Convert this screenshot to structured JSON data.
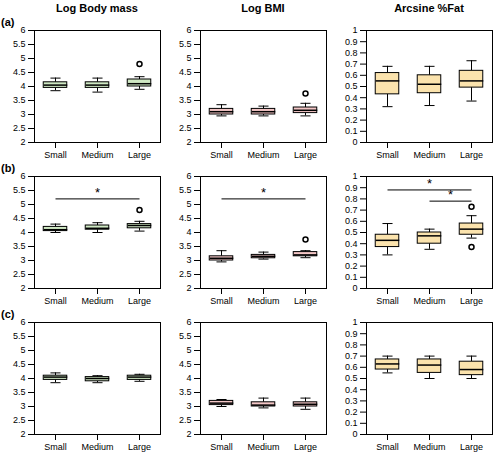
{
  "chart_data": [
    {
      "type": "box",
      "title": "Log Body mass",
      "panel_label": "(a)",
      "color": "#cfe8c3",
      "categories": [
        "Small",
        "Medium",
        "Large"
      ],
      "boxes": [
        {
          "whisker_low": 3.85,
          "q1": 3.95,
          "median": 4.05,
          "q3": 4.15,
          "whisker_high": 4.3,
          "outliers": []
        },
        {
          "whisker_low": 3.8,
          "q1": 3.95,
          "median": 4.05,
          "q3": 4.15,
          "whisker_high": 4.3,
          "outliers": []
        },
        {
          "whisker_low": 3.9,
          "q1": 4.0,
          "median": 4.1,
          "q3": 4.25,
          "whisker_high": 4.35,
          "outliers": [
            4.8
          ]
        }
      ],
      "ylim": [
        2,
        6
      ],
      "yticks": [
        2,
        2.5,
        3,
        3.5,
        4,
        4.5,
        5,
        5.5,
        6
      ],
      "significance": []
    },
    {
      "type": "box",
      "title": "Log BMI",
      "color": "#f3c6c6",
      "categories": [
        "Small",
        "Medium",
        "Large"
      ],
      "boxes": [
        {
          "whisker_low": 2.95,
          "q1": 3.0,
          "median": 3.1,
          "q3": 3.2,
          "whisker_high": 3.35,
          "outliers": []
        },
        {
          "whisker_low": 2.95,
          "q1": 3.0,
          "median": 3.1,
          "q3": 3.2,
          "whisker_high": 3.3,
          "outliers": []
        },
        {
          "whisker_low": 2.95,
          "q1": 3.05,
          "median": 3.15,
          "q3": 3.25,
          "whisker_high": 3.4,
          "outliers": [
            3.75
          ]
        }
      ],
      "ylim": [
        2,
        6
      ],
      "yticks": [
        2,
        2.5,
        3,
        3.5,
        4,
        4.5,
        5,
        5.5,
        6
      ],
      "significance": []
    },
    {
      "type": "box",
      "title": "Arcsine %Fat",
      "color": "#fbe3ad",
      "categories": [
        "Small",
        "Medium",
        "Large"
      ],
      "boxes": [
        {
          "whisker_low": 0.32,
          "q1": 0.43,
          "median": 0.55,
          "q3": 0.62,
          "whisker_high": 0.68,
          "outliers": []
        },
        {
          "whisker_low": 0.33,
          "q1": 0.44,
          "median": 0.52,
          "q3": 0.6,
          "whisker_high": 0.68,
          "outliers": []
        },
        {
          "whisker_low": 0.37,
          "q1": 0.49,
          "median": 0.55,
          "q3": 0.64,
          "whisker_high": 0.73,
          "outliers": []
        }
      ],
      "ylim": [
        0,
        1
      ],
      "yticks": [
        0,
        0.1,
        0.2,
        0.3,
        0.4,
        0.5,
        0.6,
        0.7,
        0.8,
        0.9,
        1
      ],
      "significance": []
    },
    {
      "type": "box",
      "panel_label": "(b)",
      "color": "#cfe8c3",
      "categories": [
        "Small",
        "Medium",
        "Large"
      ],
      "boxes": [
        {
          "whisker_low": 4.0,
          "q1": 4.05,
          "median": 4.1,
          "q3": 4.2,
          "whisker_high": 4.3,
          "outliers": []
        },
        {
          "whisker_low": 4.0,
          "q1": 4.1,
          "median": 4.15,
          "q3": 4.25,
          "whisker_high": 4.35,
          "outliers": []
        },
        {
          "whisker_low": 4.05,
          "q1": 4.15,
          "median": 4.25,
          "q3": 4.3,
          "whisker_high": 4.4,
          "outliers": [
            4.8
          ]
        }
      ],
      "ylim": [
        2,
        6
      ],
      "yticks": [
        2,
        2.5,
        3,
        3.5,
        4,
        4.5,
        5,
        5.5,
        6
      ],
      "significance": [
        {
          "from": "Small",
          "to": "Large",
          "y": 5.2,
          "label": "*"
        }
      ]
    },
    {
      "type": "box",
      "color": "#f3c6c6",
      "categories": [
        "Small",
        "Medium",
        "Large"
      ],
      "boxes": [
        {
          "whisker_low": 2.95,
          "q1": 3.0,
          "median": 3.08,
          "q3": 3.15,
          "whisker_high": 3.35,
          "outliers": []
        },
        {
          "whisker_low": 3.05,
          "q1": 3.08,
          "median": 3.15,
          "q3": 3.2,
          "whisker_high": 3.3,
          "outliers": []
        },
        {
          "whisker_low": 3.1,
          "q1": 3.15,
          "median": 3.2,
          "q3": 3.3,
          "whisker_high": 3.35,
          "outliers": [
            3.75
          ]
        }
      ],
      "ylim": [
        2,
        6
      ],
      "yticks": [
        2,
        2.5,
        3,
        3.5,
        4,
        4.5,
        5,
        5.5,
        6
      ],
      "significance": [
        {
          "from": "Small",
          "to": "Large",
          "y": 5.2,
          "label": "*"
        }
      ]
    },
    {
      "type": "box",
      "color": "#fbe3ad",
      "categories": [
        "Small",
        "Medium",
        "Large"
      ],
      "boxes": [
        {
          "whisker_low": 0.3,
          "q1": 0.37,
          "median": 0.43,
          "q3": 0.48,
          "whisker_high": 0.58,
          "outliers": []
        },
        {
          "whisker_low": 0.35,
          "q1": 0.4,
          "median": 0.47,
          "q3": 0.5,
          "whisker_high": 0.53,
          "outliers": []
        },
        {
          "whisker_low": 0.45,
          "q1": 0.48,
          "median": 0.53,
          "q3": 0.58,
          "whisker_high": 0.65,
          "outliers": [
            0.73,
            0.37
          ]
        }
      ],
      "ylim": [
        0,
        1
      ],
      "yticks": [
        0,
        0.1,
        0.2,
        0.3,
        0.4,
        0.5,
        0.6,
        0.7,
        0.8,
        0.9,
        1
      ],
      "significance": [
        {
          "from": "Small",
          "to": "Large",
          "y": 0.88,
          "label": "*"
        },
        {
          "from": "Medium",
          "to": "Large",
          "y": 0.78,
          "label": "*"
        }
      ]
    },
    {
      "type": "box",
      "panel_label": "(c)",
      "color": "#cfe8c3",
      "categories": [
        "Small",
        "Medium",
        "Large"
      ],
      "boxes": [
        {
          "whisker_low": 3.85,
          "q1": 3.95,
          "median": 4.05,
          "q3": 4.1,
          "whisker_high": 4.2,
          "outliers": []
        },
        {
          "whisker_low": 3.85,
          "q1": 3.9,
          "median": 4.0,
          "q3": 4.05,
          "whisker_high": 4.1,
          "outliers": []
        },
        {
          "whisker_low": 3.9,
          "q1": 3.95,
          "median": 4.05,
          "q3": 4.1,
          "whisker_high": 4.15,
          "outliers": []
        }
      ],
      "ylim": [
        2,
        6
      ],
      "yticks": [
        2,
        2.5,
        3,
        3.5,
        4,
        4.5,
        5,
        5.5,
        6
      ],
      "significance": []
    },
    {
      "type": "box",
      "color": "#f3c6c6",
      "categories": [
        "Small",
        "Medium",
        "Large"
      ],
      "boxes": [
        {
          "whisker_low": 3.0,
          "q1": 3.05,
          "median": 3.12,
          "q3": 3.2,
          "whisker_high": 3.25,
          "outliers": []
        },
        {
          "whisker_low": 2.95,
          "q1": 3.0,
          "median": 3.05,
          "q3": 3.15,
          "whisker_high": 3.3,
          "outliers": []
        },
        {
          "whisker_low": 2.9,
          "q1": 3.0,
          "median": 3.08,
          "q3": 3.15,
          "whisker_high": 3.3,
          "outliers": []
        }
      ],
      "ylim": [
        2,
        6
      ],
      "yticks": [
        2,
        2.5,
        3,
        3.5,
        4,
        4.5,
        5,
        5.5,
        6
      ],
      "significance": []
    },
    {
      "type": "box",
      "color": "#fbe3ad",
      "categories": [
        "Small",
        "Medium",
        "Large"
      ],
      "boxes": [
        {
          "whisker_low": 0.55,
          "q1": 0.58,
          "median": 0.63,
          "q3": 0.67,
          "whisker_high": 0.7,
          "outliers": []
        },
        {
          "whisker_low": 0.5,
          "q1": 0.55,
          "median": 0.62,
          "q3": 0.67,
          "whisker_high": 0.7,
          "outliers": []
        },
        {
          "whisker_low": 0.5,
          "q1": 0.53,
          "median": 0.58,
          "q3": 0.65,
          "whisker_high": 0.7,
          "outliers": []
        }
      ],
      "ylim": [
        0,
        1
      ],
      "yticks": [
        0,
        0.1,
        0.2,
        0.3,
        0.4,
        0.5,
        0.6,
        0.7,
        0.8,
        0.9,
        1
      ],
      "significance": []
    }
  ]
}
